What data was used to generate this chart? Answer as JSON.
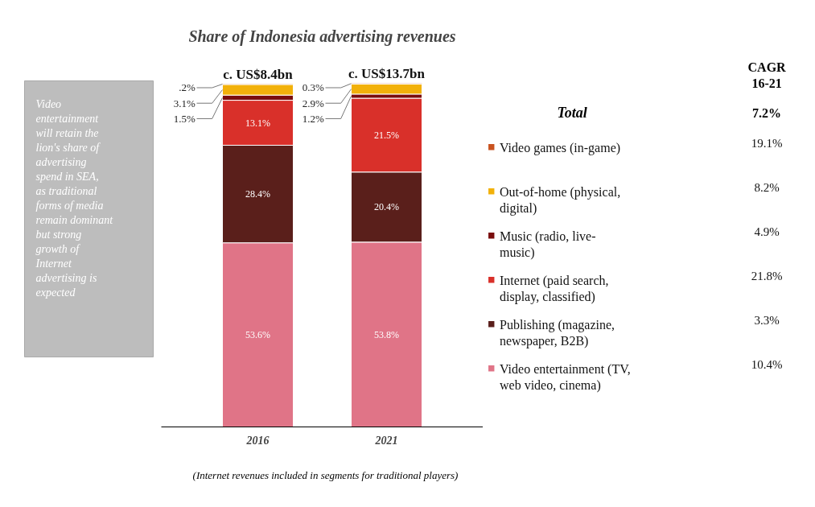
{
  "chart_data": {
    "type": "bar",
    "title": "Share of Indonesia advertising revenues",
    "stacked": true,
    "categories": [
      "2016",
      "2021"
    ],
    "tick_labels": "x",
    "legend": "right",
    "grid": false,
    "series": [
      {
        "name": "Video entertainment (TV, web video, cinema)",
        "color": "#e07487",
        "values": [
          53.6,
          53.8
        ],
        "value_labels": [
          "53.6%",
          "53.8%"
        ]
      },
      {
        "name": "Publishing (magazine, newspaper, B2B)",
        "color": "#5a1f1b",
        "values": [
          28.4,
          20.4
        ],
        "value_labels": [
          "28.4%",
          "20.4%"
        ]
      },
      {
        "name": "Internet (paid search, display, classified)",
        "color": "#d9302a",
        "values": [
          13.1,
          21.5
        ],
        "value_labels": [
          "13.1%",
          "21.5%"
        ]
      },
      {
        "name": "Music (radio, live-music)",
        "color": "#7a0d0d",
        "values": [
          1.5,
          1.2
        ],
        "value_labels": [
          "1.5%",
          "1.2%"
        ]
      },
      {
        "name": "Out-of-home (physical, digital)",
        "color": "#f2b10a",
        "values": [
          3.1,
          2.9
        ],
        "value_labels": [
          "3.1%",
          "2.9%"
        ]
      },
      {
        "name": "Video games (in-game)",
        "color": "#c9521f",
        "values": [
          0.2,
          0.3
        ],
        "value_labels": [
          ".2%",
          "0.3%"
        ]
      }
    ],
    "totals": [
      "c. US$8.4bn",
      "c. US$13.7bn"
    ],
    "annotations": [
      "Video entertainment will retain the lion's share of advertising spend in SEA, as traditional forms of media remain dominant but strong growth of Internet advertising is expected",
      "(Internet revenues included in segments for traditional players)",
      "CAGR 16-21",
      "Total",
      "7.2%",
      "19.1%",
      "8.2%",
      "4.9%",
      "21.8%",
      "3.3%",
      "10.4%"
    ]
  }
}
